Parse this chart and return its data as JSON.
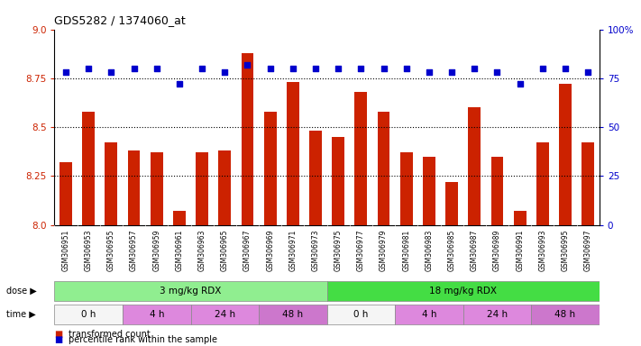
{
  "title": "GDS5282 / 1374060_at",
  "samples": [
    "GSM306951",
    "GSM306953",
    "GSM306955",
    "GSM306957",
    "GSM306959",
    "GSM306961",
    "GSM306963",
    "GSM306965",
    "GSM306967",
    "GSM306969",
    "GSM306971",
    "GSM306973",
    "GSM306975",
    "GSM306977",
    "GSM306979",
    "GSM306981",
    "GSM306983",
    "GSM306985",
    "GSM306987",
    "GSM306989",
    "GSM306991",
    "GSM306993",
    "GSM306995",
    "GSM306997"
  ],
  "transformed_count": [
    8.32,
    8.58,
    8.42,
    8.38,
    8.37,
    8.07,
    8.37,
    8.38,
    8.88,
    8.58,
    8.73,
    8.48,
    8.45,
    8.68,
    8.58,
    8.37,
    8.35,
    8.22,
    8.6,
    8.35,
    8.07,
    8.42,
    8.72,
    8.42
  ],
  "percentile_rank": [
    78,
    80,
    78,
    80,
    80,
    72,
    80,
    78,
    82,
    80,
    80,
    80,
    80,
    80,
    80,
    80,
    78,
    78,
    80,
    78,
    72,
    80,
    80,
    78
  ],
  "bar_color": "#cc2200",
  "dot_color": "#0000cc",
  "ylim_left": [
    8.0,
    9.0
  ],
  "ylim_right": [
    0,
    100
  ],
  "yticks_left": [
    8.0,
    8.25,
    8.5,
    8.75,
    9.0
  ],
  "yticks_right": [
    0,
    25,
    50,
    75,
    100
  ],
  "ytick_labels_right": [
    "0",
    "25",
    "50",
    "75",
    "100%"
  ],
  "hlines": [
    8.25,
    8.5,
    8.75
  ],
  "dose_groups": [
    {
      "label": "3 mg/kg RDX",
      "start": 0,
      "end": 12,
      "color": "#90ee90"
    },
    {
      "label": "18 mg/kg RDX",
      "start": 12,
      "end": 24,
      "color": "#44dd44"
    }
  ],
  "time_groups": [
    {
      "label": "0 h",
      "start": 0,
      "end": 3,
      "color": "#f5f5f5"
    },
    {
      "label": "4 h",
      "start": 3,
      "end": 6,
      "color": "#dd88dd"
    },
    {
      "label": "24 h",
      "start": 6,
      "end": 9,
      "color": "#dd88dd"
    },
    {
      "label": "48 h",
      "start": 9,
      "end": 12,
      "color": "#cc77cc"
    },
    {
      "label": "0 h",
      "start": 12,
      "end": 15,
      "color": "#f5f5f5"
    },
    {
      "label": "4 h",
      "start": 15,
      "end": 18,
      "color": "#dd88dd"
    },
    {
      "label": "24 h",
      "start": 18,
      "end": 21,
      "color": "#dd88dd"
    },
    {
      "label": "48 h",
      "start": 21,
      "end": 24,
      "color": "#cc77cc"
    }
  ],
  "legend_items": [
    {
      "label": "transformed count",
      "color": "#cc2200"
    },
    {
      "label": "percentile rank within the sample",
      "color": "#0000cc"
    }
  ],
  "bg_color": "#ffffff",
  "plot_bg_color": "#ffffff"
}
